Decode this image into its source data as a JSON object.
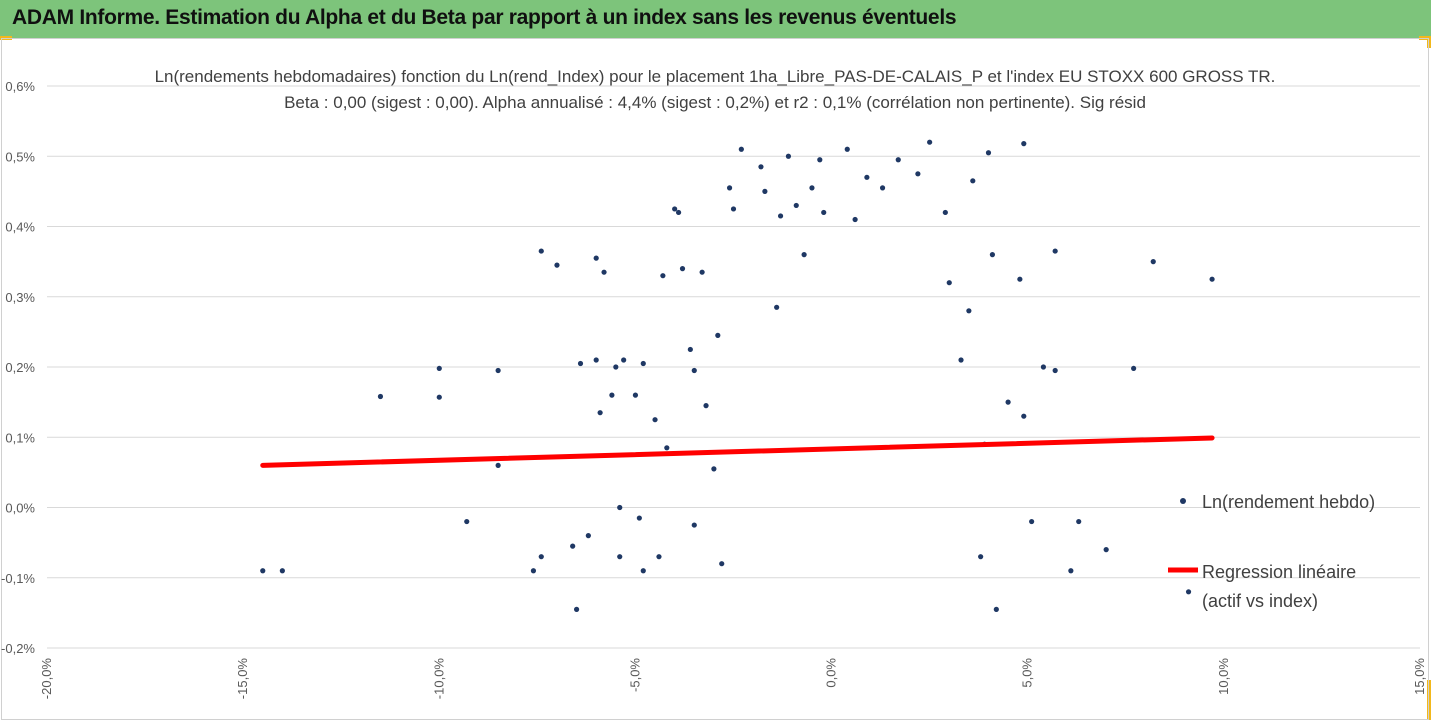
{
  "header": {
    "title": "ADAM Informe. Estimation du Alpha et du Beta par rapport à un index sans les revenus éventuels"
  },
  "colors": {
    "header_bg": "#7dc47b",
    "points": "#1f3864",
    "regression": "#ff0000",
    "accent": "#f2b81c"
  },
  "chart_data": {
    "type": "scatter",
    "title": "Ln(rendements hebdomadaires) fonction du Ln(rend_Index) pour le placement 1ha_Libre_PAS-DE-CALAIS_P et l'index EU STOXX 600 GROSS TR.",
    "subtitle": "Beta : 0,00 (sigest : 0,00). Alpha annualisé : 4,4% (sigest : 0,2%) et r2 : 0,1% (corrélation non pertinente). Sig résid",
    "xlabel": "",
    "ylabel": "",
    "xlim": [
      -20,
      15
    ],
    "ylim": [
      -0.2,
      0.6
    ],
    "x_ticks": [
      "-20,0%",
      "-15,0%",
      "-10,0%",
      "-5,0%",
      "0,0%",
      "5,0%",
      "10,0%",
      "15,0%"
    ],
    "y_ticks": [
      "-0,2%",
      "-0,1%",
      "0,0%",
      "0,1%",
      "0,2%",
      "0,3%",
      "0,4%",
      "0,5%",
      "0,6%"
    ],
    "grid": "horizontal",
    "legend_position": "right",
    "series": [
      {
        "name": "Ln(rendement hebdo)",
        "kind": "scatter",
        "points": [
          [
            -14.5,
            -0.09
          ],
          [
            -14.0,
            -0.09
          ],
          [
            -11.5,
            0.158
          ],
          [
            -10.0,
            0.198
          ],
          [
            -10.0,
            0.157
          ],
          [
            -9.3,
            -0.02
          ],
          [
            -8.5,
            0.195
          ],
          [
            -8.5,
            0.06
          ],
          [
            -7.6,
            -0.09
          ],
          [
            -7.4,
            -0.07
          ],
          [
            -7.4,
            0.365
          ],
          [
            -7.0,
            0.345
          ],
          [
            -6.5,
            -0.145
          ],
          [
            -6.6,
            -0.055
          ],
          [
            -6.4,
            0.205
          ],
          [
            -6.2,
            -0.04
          ],
          [
            -6.0,
            0.21
          ],
          [
            -5.9,
            0.135
          ],
          [
            -5.8,
            0.335
          ],
          [
            -6.0,
            0.355
          ],
          [
            -5.5,
            0.2
          ],
          [
            -5.6,
            0.16
          ],
          [
            -5.4,
            -0.07
          ],
          [
            -5.4,
            0.0
          ],
          [
            -5.3,
            0.21
          ],
          [
            -5.0,
            0.16
          ],
          [
            -4.9,
            -0.015
          ],
          [
            -4.8,
            -0.09
          ],
          [
            -4.8,
            0.205
          ],
          [
            -4.5,
            0.125
          ],
          [
            -4.4,
            -0.07
          ],
          [
            -4.3,
            0.33
          ],
          [
            -4.2,
            0.085
          ],
          [
            -4.0,
            0.425
          ],
          [
            -3.9,
            0.42
          ],
          [
            -3.8,
            0.34
          ],
          [
            -3.6,
            0.225
          ],
          [
            -3.5,
            0.195
          ],
          [
            -3.5,
            -0.025
          ],
          [
            -3.3,
            0.335
          ],
          [
            -3.2,
            0.145
          ],
          [
            -3.0,
            0.055
          ],
          [
            -2.9,
            0.245
          ],
          [
            -2.8,
            -0.08
          ],
          [
            -2.6,
            0.455
          ],
          [
            -2.5,
            0.425
          ],
          [
            -2.3,
            0.51
          ],
          [
            -1.8,
            0.485
          ],
          [
            -1.7,
            0.45
          ],
          [
            -1.4,
            0.285
          ],
          [
            -1.3,
            0.415
          ],
          [
            -1.1,
            0.5
          ],
          [
            -0.9,
            0.43
          ],
          [
            -0.7,
            0.36
          ],
          [
            -0.5,
            0.455
          ],
          [
            -0.3,
            0.495
          ],
          [
            -0.2,
            0.42
          ],
          [
            0.4,
            0.51
          ],
          [
            0.6,
            0.41
          ],
          [
            0.9,
            0.47
          ],
          [
            1.3,
            0.455
          ],
          [
            1.7,
            0.495
          ],
          [
            2.2,
            0.475
          ],
          [
            2.5,
            0.52
          ],
          [
            2.9,
            0.42
          ],
          [
            3.6,
            0.465
          ],
          [
            4.0,
            0.505
          ],
          [
            4.1,
            0.36
          ],
          [
            4.8,
            0.325
          ],
          [
            4.9,
            0.518
          ],
          [
            5.4,
            0.2
          ],
          [
            5.7,
            0.365
          ],
          [
            5.7,
            0.195
          ],
          [
            6.1,
            -0.09
          ],
          [
            6.3,
            -0.02
          ],
          [
            7.0,
            -0.06
          ],
          [
            7.7,
            0.198
          ],
          [
            8.2,
            0.35
          ],
          [
            9.7,
            0.325
          ],
          [
            9.1,
            -0.12
          ],
          [
            4.2,
            -0.145
          ],
          [
            3.8,
            -0.07
          ],
          [
            4.5,
            0.15
          ],
          [
            4.9,
            0.13
          ],
          [
            5.1,
            -0.02
          ],
          [
            3.9,
            0.09
          ],
          [
            3.3,
            0.21
          ],
          [
            3.0,
            0.32
          ],
          [
            3.5,
            0.28
          ]
        ]
      },
      {
        "name": "Regression linéaire\n(actif vs index)",
        "kind": "line",
        "x": [
          -14.5,
          9.7
        ],
        "y": [
          0.06,
          0.099
        ]
      }
    ]
  }
}
